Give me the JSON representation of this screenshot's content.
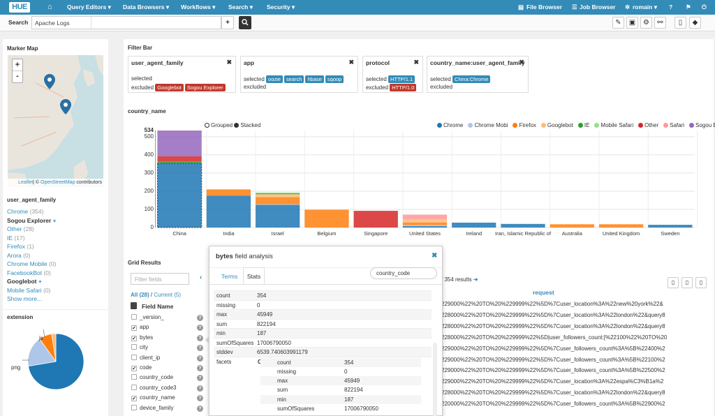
{
  "nav": {
    "logo": "HUE",
    "home": "⌂",
    "query_editors": "Query Editors ▾",
    "data_browsers": "Data Browsers ▾",
    "workflows": "Workflows ▾",
    "search": "Search ▾",
    "security": "Security ▾",
    "file_browser": "File Browser",
    "job_browser": "Job Browser",
    "user": "romain ▾"
  },
  "searchbar": {
    "label": "Search",
    "collection": "Apache Logs",
    "add": "+"
  },
  "marker_map": {
    "title": "Marker Map",
    "attribution_leaflet": "Leaflet",
    "attribution_rest": "| © ",
    "attribution_osm": "OpenStreetMap",
    "attribution_tail": " contributors",
    "zoom_in": "+",
    "zoom_out": "-"
  },
  "user_agent_family": {
    "title": "user_agent_family",
    "items": [
      {
        "name": "Chrome",
        "count": "(354)",
        "style": "link"
      },
      {
        "name": "Sogou Explorer",
        "count": "+",
        "style": "bold"
      },
      {
        "name": "Other",
        "count": "(28)",
        "style": "link"
      },
      {
        "name": "IE",
        "count": "(17)",
        "style": "link"
      },
      {
        "name": "Firefox",
        "count": "(1)",
        "style": "link"
      },
      {
        "name": "Arora",
        "count": "(0)",
        "style": "link"
      },
      {
        "name": "Chrome Mobile",
        "count": "(0)",
        "style": "link"
      },
      {
        "name": "FacebookBot",
        "count": "(0)",
        "style": "link"
      },
      {
        "name": "Googlebot",
        "count": "+",
        "style": "bold"
      },
      {
        "name": "Mobile Safari",
        "count": "(0)",
        "style": "link"
      }
    ],
    "show_more": "Show more..."
  },
  "extension": {
    "title": "extension",
    "labels": [
      "js",
      "png"
    ]
  },
  "filter_bar": {
    "title": "Filter Bar",
    "cards": [
      {
        "title": "user_agent_family",
        "selected": [],
        "excluded": [
          "Googlebot",
          "Sogou Explorer"
        ]
      },
      {
        "title": "app",
        "selected": [
          "oozie",
          "search",
          "hbase",
          "sqoop"
        ],
        "excluded": []
      },
      {
        "title": "protocol",
        "selected": [
          "HTTP/1.1"
        ],
        "excluded": [
          "HTTP/1.0"
        ]
      },
      {
        "title": "country_name:user_agent_family",
        "selected": [
          "China:Chrome"
        ],
        "excluded": []
      }
    ],
    "selected_label": "selected",
    "excluded_label": "excluded"
  },
  "country_chart": {
    "title": "country_name",
    "mode_grouped": "Grouped",
    "mode_stacked": "Stacked"
  },
  "chart_data": {
    "type": "bar",
    "stacked": true,
    "categories": [
      "China",
      "India",
      "Israel",
      "Belgium",
      "Singapore",
      "United States",
      "Ireland",
      "Iran, Islamic Republic of",
      "Australia",
      "United Kingdom",
      "Sweden"
    ],
    "ylim": [
      0,
      534
    ],
    "yticks": [
      "0",
      "100",
      "200",
      "300",
      "400",
      "500",
      "534"
    ],
    "legend": [
      "Chrome",
      "Chrome Mobi",
      "Firefox",
      "Googlebot",
      "IE",
      "Mobile Safari",
      "Other",
      "Safari",
      "Sogou Explorer"
    ],
    "series": [
      {
        "name": "Chrome",
        "color": "#1f77b4",
        "values": [
          354,
          175,
          125,
          0,
          0,
          8,
          27,
          20,
          0,
          0,
          15
        ]
      },
      {
        "name": "Chrome Mobi",
        "color": "#aec7e8",
        "values": [
          0,
          0,
          3,
          0,
          0,
          5,
          0,
          0,
          0,
          0,
          0
        ]
      },
      {
        "name": "Firefox",
        "color": "#ff7f0e",
        "values": [
          0,
          35,
          40,
          98,
          0,
          15,
          0,
          0,
          18,
          18,
          0
        ]
      },
      {
        "name": "Googlebot",
        "color": "#ffbb78",
        "values": [
          0,
          0,
          15,
          0,
          0,
          18,
          0,
          0,
          0,
          0,
          0
        ]
      },
      {
        "name": "IE",
        "color": "#2ca02c",
        "values": [
          10,
          0,
          5,
          0,
          0,
          0,
          0,
          0,
          0,
          0,
          0
        ]
      },
      {
        "name": "Mobile Safari",
        "color": "#98df8a",
        "values": [
          0,
          0,
          5,
          0,
          0,
          0,
          0,
          0,
          0,
          0,
          0
        ]
      },
      {
        "name": "Other",
        "color": "#d62728",
        "values": [
          28,
          0,
          0,
          0,
          92,
          0,
          0,
          0,
          0,
          0,
          0
        ]
      },
      {
        "name": "Safari",
        "color": "#ff9896",
        "values": [
          0,
          0,
          0,
          0,
          0,
          25,
          0,
          0,
          0,
          0,
          0
        ]
      },
      {
        "name": "Sogou Explorer",
        "color": "#9467bd",
        "values": [
          142,
          0,
          0,
          0,
          0,
          0,
          0,
          0,
          0,
          0,
          0
        ]
      }
    ]
  },
  "grid": {
    "title": "Grid Results",
    "filter_placeholder": "Filter fields",
    "all_label": "All (28)",
    "current_label": "Current (5)",
    "field_name": "Field Name",
    "fields": [
      {
        "name": "_version_",
        "checked": false
      },
      {
        "name": "app",
        "checked": true
      },
      {
        "name": "bytes",
        "checked": true
      },
      {
        "name": "city",
        "checked": false
      },
      {
        "name": "client_ip",
        "checked": false
      },
      {
        "name": "code",
        "checked": true
      },
      {
        "name": "country_code",
        "checked": false
      },
      {
        "name": "country_code3",
        "checked": false
      },
      {
        "name": "country_name",
        "checked": true
      },
      {
        "name": "device_family",
        "checked": false
      }
    ],
    "results_text": "f 354 results",
    "col_header": "request",
    "rows": [
      "229000%22%20TO%20%229999%22%5D%7Cuser_location%3A%22new%20york%22&",
      "228000%22%20TO%20%229999%22%5D%7Cuser_location%3A%22london%22&query8",
      "228000%22%20TO%20%229999%22%5D%7Cuser_location%3A%22london%22&query8",
      "228000%22%20TO%20%229999%22%5D|user_followers_count:[%22100%22%20TO%20",
      "229000%22%20TO%20%229999%22%5D%7Cuser_followers_count%3A%5B%22400%2",
      "229000%22%20TO%20%229999%22%5D%7Cuser_followers_count%3A%5B%22100%2",
      "229000%22%20TO%20%229999%22%5D%7Cuser_followers_count%3A%5B%22500%2",
      "229000%22%20TO%20%229999%22%5D%7Cuser_location%3A%22espa%C3%B1a%2",
      "228000%22%20TO%20%229999%22%5D%7Cuser_location%3A%22london%22&query8",
      "220000%22%20TO%20%229999%22%5D%7Cuser_followers_count%3A%5B%22900%2"
    ]
  },
  "analysis": {
    "field": "bytes",
    "title_rest": " field analysis",
    "tab_terms": "Terms",
    "tab_stats": "Stats",
    "facet_field": "country_code",
    "stats": [
      [
        "count",
        "354"
      ],
      [
        "missing",
        "0"
      ],
      [
        "max",
        "45949"
      ],
      [
        "sum",
        "822194"
      ],
      [
        "min",
        "187"
      ],
      [
        "sumOfSquares",
        "17006790050"
      ],
      [
        "stddev",
        "6539.740603991179"
      ]
    ],
    "facets_label": "facets",
    "facet_key": "CN",
    "facet_stats": [
      [
        "count",
        "354"
      ],
      [
        "missing",
        "0"
      ],
      [
        "max",
        "45949"
      ],
      [
        "sum",
        "822194"
      ],
      [
        "min",
        "187"
      ],
      [
        "sumOfSquares",
        "17006790050"
      ]
    ]
  }
}
